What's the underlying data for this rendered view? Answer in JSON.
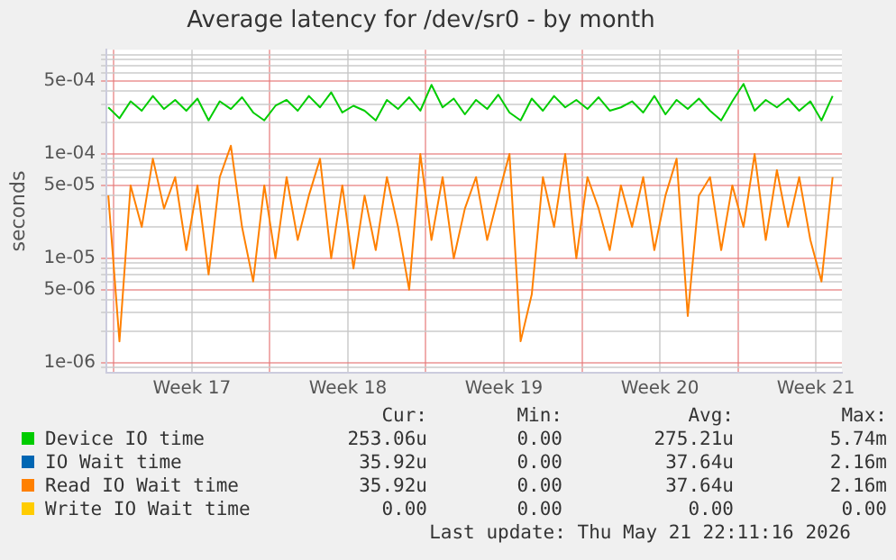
{
  "chart_data": {
    "type": "line",
    "title": "Average latency for /dev/sr0 - by month",
    "ylabel": "seconds",
    "log": true,
    "grid": true,
    "legend": "bottom",
    "marker": "none",
    "line_style": "solid",
    "xlim": [
      "2026-04-19T16:00",
      "2026-05-22T16:00"
    ],
    "xticks": [
      {
        "value": "2026-04-20",
        "label": null
      },
      {
        "value": "2026-04-23T12:00",
        "label": "Week 17"
      },
      {
        "value": "2026-04-27",
        "label": null
      },
      {
        "value": "2026-04-30T12:00",
        "label": "Week 18"
      },
      {
        "value": "2026-05-04",
        "label": null
      },
      {
        "value": "2026-05-07T12:00",
        "label": "Week 19"
      },
      {
        "value": "2026-05-11",
        "label": null
      },
      {
        "value": "2026-05-14T12:00",
        "label": "Week 20"
      },
      {
        "value": "2026-05-18",
        "label": null
      },
      {
        "value": "2026-05-21T12:00",
        "label": "Week 21"
      }
    ],
    "ylim": [
      8e-07,
      0.001
    ],
    "yticks": [
      {
        "value": 9e-07,
        "label": null
      },
      {
        "value": 1e-06,
        "label": "1e-06"
      },
      {
        "value": 2e-06,
        "label": null
      },
      {
        "value": 3e-06,
        "label": null
      },
      {
        "value": 4e-06,
        "label": null
      },
      {
        "value": 5e-06,
        "label": "5e-06"
      },
      {
        "value": 6e-06,
        "label": null
      },
      {
        "value": 7e-06,
        "label": null
      },
      {
        "value": 8e-06,
        "label": null
      },
      {
        "value": 9e-06,
        "label": null
      },
      {
        "value": 1e-05,
        "label": "1e-05"
      },
      {
        "value": 2e-05,
        "label": null
      },
      {
        "value": 3e-05,
        "label": null
      },
      {
        "value": 4e-05,
        "label": null
      },
      {
        "value": 5e-05,
        "label": "5e-05"
      },
      {
        "value": 6e-05,
        "label": null
      },
      {
        "value": 7e-05,
        "label": null
      },
      {
        "value": 8e-05,
        "label": null
      },
      {
        "value": 9e-05,
        "label": null
      },
      {
        "value": 0.0001,
        "label": "1e-04"
      },
      {
        "value": 0.0002,
        "label": null
      },
      {
        "value": 0.0003,
        "label": null
      },
      {
        "value": 0.0004,
        "label": null
      },
      {
        "value": 0.0005,
        "label": "5e-04"
      },
      {
        "value": 0.0006,
        "label": null
      },
      {
        "value": 0.0007,
        "label": null
      },
      {
        "value": 0.0008,
        "label": null
      },
      {
        "value": 0.0009,
        "label": null
      }
    ],
    "x": [
      "2026-04-19T18:00",
      "2026-04-20T06:00",
      "2026-04-20T18:00",
      "2026-04-21T06:00",
      "2026-04-21T18:00",
      "2026-04-22T06:00",
      "2026-04-22T18:00",
      "2026-04-23T06:00",
      "2026-04-23T18:00",
      "2026-04-24T06:00",
      "2026-04-24T18:00",
      "2026-04-25T06:00",
      "2026-04-25T18:00",
      "2026-04-26T06:00",
      "2026-04-26T18:00",
      "2026-04-27T06:00",
      "2026-04-27T18:00",
      "2026-04-28T06:00",
      "2026-04-28T18:00",
      "2026-04-29T06:00",
      "2026-04-29T18:00",
      "2026-04-30T06:00",
      "2026-04-30T18:00",
      "2026-05-01T06:00",
      "2026-05-01T18:00",
      "2026-05-02T06:00",
      "2026-05-02T18:00",
      "2026-05-03T06:00",
      "2026-05-03T18:00",
      "2026-05-04T06:00",
      "2026-05-04T18:00",
      "2026-05-05T06:00",
      "2026-05-05T18:00",
      "2026-05-06T06:00",
      "2026-05-06T18:00",
      "2026-05-07T06:00",
      "2026-05-07T18:00",
      "2026-05-08T06:00",
      "2026-05-08T18:00",
      "2026-05-09T06:00",
      "2026-05-09T18:00",
      "2026-05-10T06:00",
      "2026-05-10T18:00",
      "2026-05-11T06:00",
      "2026-05-11T18:00",
      "2026-05-12T06:00",
      "2026-05-12T18:00",
      "2026-05-13T06:00",
      "2026-05-13T18:00",
      "2026-05-14T06:00",
      "2026-05-14T18:00",
      "2026-05-15T06:00",
      "2026-05-15T18:00",
      "2026-05-16T06:00",
      "2026-05-16T18:00",
      "2026-05-17T06:00",
      "2026-05-17T18:00",
      "2026-05-18T06:00",
      "2026-05-18T18:00",
      "2026-05-19T06:00",
      "2026-05-19T18:00",
      "2026-05-20T06:00",
      "2026-05-20T18:00",
      "2026-05-21T06:00",
      "2026-05-21T18:00",
      "2026-05-22T06:00"
    ],
    "series": [
      {
        "name": "Device IO time",
        "color": "#00cc00",
        "values": [
          0.00028,
          0.00022,
          0.00032,
          0.00026,
          0.00036,
          0.00027,
          0.00033,
          0.00026,
          0.00034,
          0.00021,
          0.00032,
          0.00027,
          0.00035,
          0.00025,
          0.00021,
          0.00029,
          0.00033,
          0.00026,
          0.00036,
          0.00028,
          0.00039,
          0.00025,
          0.00029,
          0.00026,
          0.00021,
          0.00033,
          0.00027,
          0.00035,
          0.00026,
          0.00046,
          0.00028,
          0.00034,
          0.00024,
          0.00033,
          0.00027,
          0.00037,
          0.00025,
          0.00021,
          0.00034,
          0.00026,
          0.00036,
          0.00028,
          0.00033,
          0.00027,
          0.00035,
          0.00026,
          0.00028,
          0.00032,
          0.00025,
          0.00036,
          0.00024,
          0.00033,
          0.00027,
          0.00034,
          0.00026,
          0.00021,
          0.00032,
          0.00047,
          0.00026,
          0.00033,
          0.00028,
          0.00034,
          0.00026,
          0.00032,
          0.00021,
          0.00036
        ]
      },
      {
        "name": "IO Wait time",
        "color": "#0066b3",
        "values": [
          null,
          null,
          null,
          null,
          null,
          null,
          null,
          null,
          null,
          null,
          null,
          null,
          null,
          null,
          null,
          null,
          null,
          null,
          null,
          null,
          null,
          null,
          null,
          null,
          null,
          null,
          null,
          null,
          null,
          null,
          null,
          null,
          null,
          null,
          null,
          null,
          null,
          null,
          null,
          null,
          null,
          null,
          null,
          null,
          null,
          null,
          null,
          null,
          null,
          null,
          null,
          null,
          null,
          null,
          null,
          null,
          null,
          null,
          null,
          null,
          null,
          null,
          null,
          null,
          null,
          null
        ]
      },
      {
        "name": "Read IO Wait time",
        "color": "#ff8000",
        "values": [
          4e-05,
          1.6e-06,
          5e-05,
          2e-05,
          9e-05,
          3e-05,
          6e-05,
          1.2e-05,
          5e-05,
          7e-06,
          6e-05,
          0.00012,
          2e-05,
          6e-06,
          5e-05,
          1e-05,
          6e-05,
          1.5e-05,
          4e-05,
          9e-05,
          1e-05,
          5e-05,
          8e-06,
          4e-05,
          1.2e-05,
          6e-05,
          2e-05,
          5e-06,
          0.0001,
          1.5e-05,
          6e-05,
          1e-05,
          3e-05,
          6e-05,
          1.5e-05,
          4e-05,
          0.0001,
          1.6e-06,
          4.5e-06,
          6e-05,
          2e-05,
          0.0001,
          1e-05,
          6e-05,
          3e-05,
          1.2e-05,
          5e-05,
          2e-05,
          6e-05,
          1.2e-05,
          4e-05,
          9e-05,
          2.8e-06,
          4e-05,
          6e-05,
          1.2e-05,
          5e-05,
          2e-05,
          0.0001,
          1.5e-05,
          7e-05,
          2e-05,
          6e-05,
          1.5e-05,
          6e-06,
          6e-05
        ]
      },
      {
        "name": "Write IO Wait time",
        "color": "#ffcc00",
        "values": [
          null,
          null,
          null,
          null,
          null,
          null,
          null,
          null,
          null,
          null,
          null,
          null,
          null,
          null,
          null,
          null,
          null,
          null,
          null,
          null,
          null,
          null,
          null,
          null,
          null,
          null,
          null,
          null,
          null,
          null,
          null,
          null,
          null,
          null,
          null,
          null,
          null,
          null,
          null,
          null,
          null,
          null,
          null,
          null,
          null,
          null,
          null,
          null,
          null,
          null,
          null,
          null,
          null,
          null,
          null,
          null,
          null,
          null,
          null,
          null,
          null,
          null,
          null,
          null,
          null,
          null
        ]
      }
    ],
    "annotations": [
      "Cur:",
      "Min:",
      "Avg:",
      "Max:",
      "253.06u",
      "0.00",
      "275.21u",
      "5.74m",
      "35.92u",
      "0.00",
      "37.64u",
      "2.16m",
      "35.92u",
      "0.00",
      "37.64u",
      "2.16m",
      "0.00",
      "0.00",
      "0.00",
      "0.00",
      "Last update: Thu May 21 22:11:16 2026"
    ]
  }
}
